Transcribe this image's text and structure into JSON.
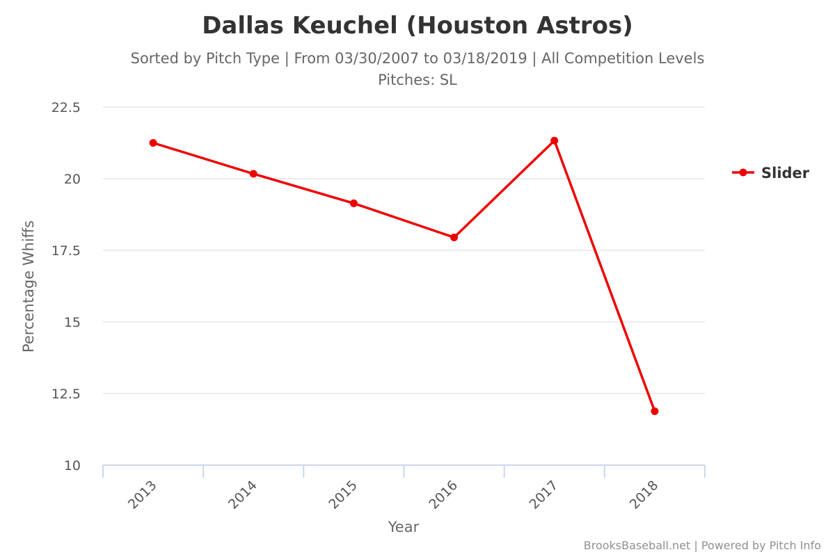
{
  "chart_data": {
    "type": "line",
    "title": "Dallas Keuchel (Houston Astros)",
    "subtitle_lines": [
      "Sorted by Pitch Type | From 03/30/2007 to 03/18/2019 | All Competition Levels",
      "Pitches: SL"
    ],
    "xlabel": "Year",
    "ylabel": "Percentage Whiffs",
    "categories": [
      "2013",
      "2014",
      "2015",
      "2016",
      "2017",
      "2018"
    ],
    "ylim": [
      10,
      22.5
    ],
    "yticks": [
      "10",
      "12.5",
      "15",
      "17.5",
      "20",
      "22.5"
    ],
    "series": [
      {
        "name": "Slider",
        "color": "#ee0000",
        "values": [
          21.25,
          20.17,
          19.14,
          17.95,
          21.33,
          11.88
        ]
      }
    ],
    "legend_position": "right",
    "grid": true
  },
  "credits": "BrooksBaseball.net | Powered by Pitch Info"
}
